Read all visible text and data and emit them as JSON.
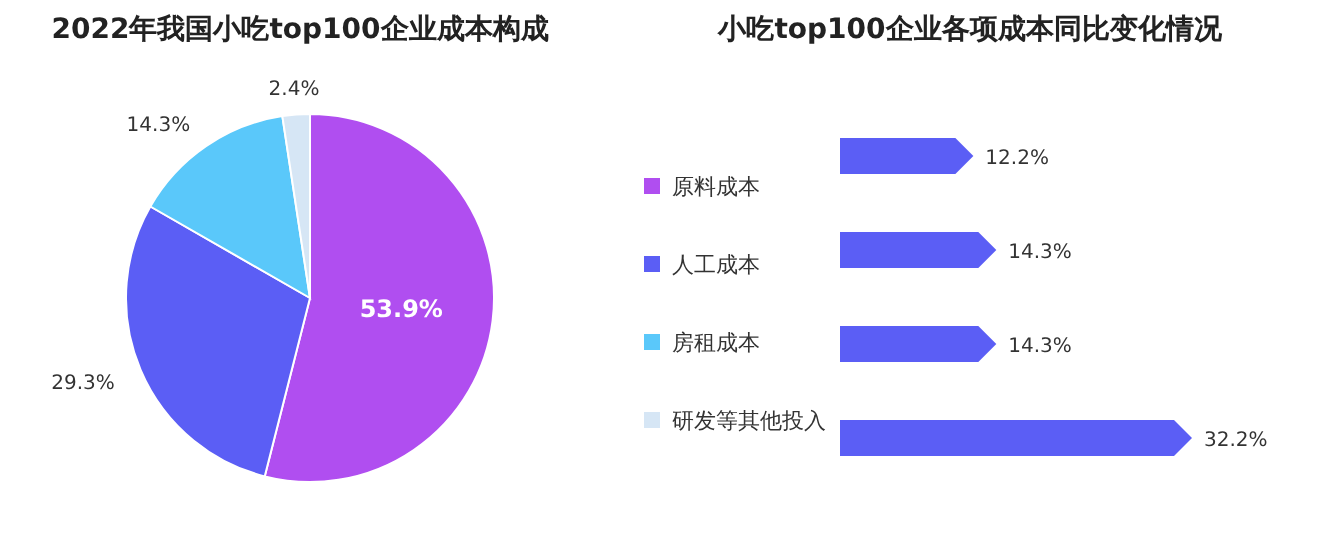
{
  "chart_data": [
    {
      "type": "pie",
      "title": "2022年我国小吃top100企业成本构成",
      "categories": [
        "原料成本",
        "人工成本",
        "房租成本",
        "研发等其他投入"
      ],
      "values": [
        53.9,
        29.3,
        14.3,
        2.4
      ],
      "value_labels": [
        "53.9%",
        "29.3%",
        "14.3%",
        "2.4%"
      ],
      "colors": [
        "#b04ef0",
        "#5b5ef5",
        "#5ac8fa",
        "#d6e6f5"
      ],
      "legend": "right"
    },
    {
      "type": "bar",
      "orientation": "horizontal",
      "title": "小吃top100企业各项成本同比变化情况",
      "categories": [
        null,
        null,
        null,
        null
      ],
      "values": [
        12.2,
        14.3,
        14.3,
        32.2
      ],
      "value_labels": [
        "12.2%",
        "14.3%",
        "14.3%",
        "32.2%"
      ],
      "color": "#5b5ef5"
    }
  ]
}
